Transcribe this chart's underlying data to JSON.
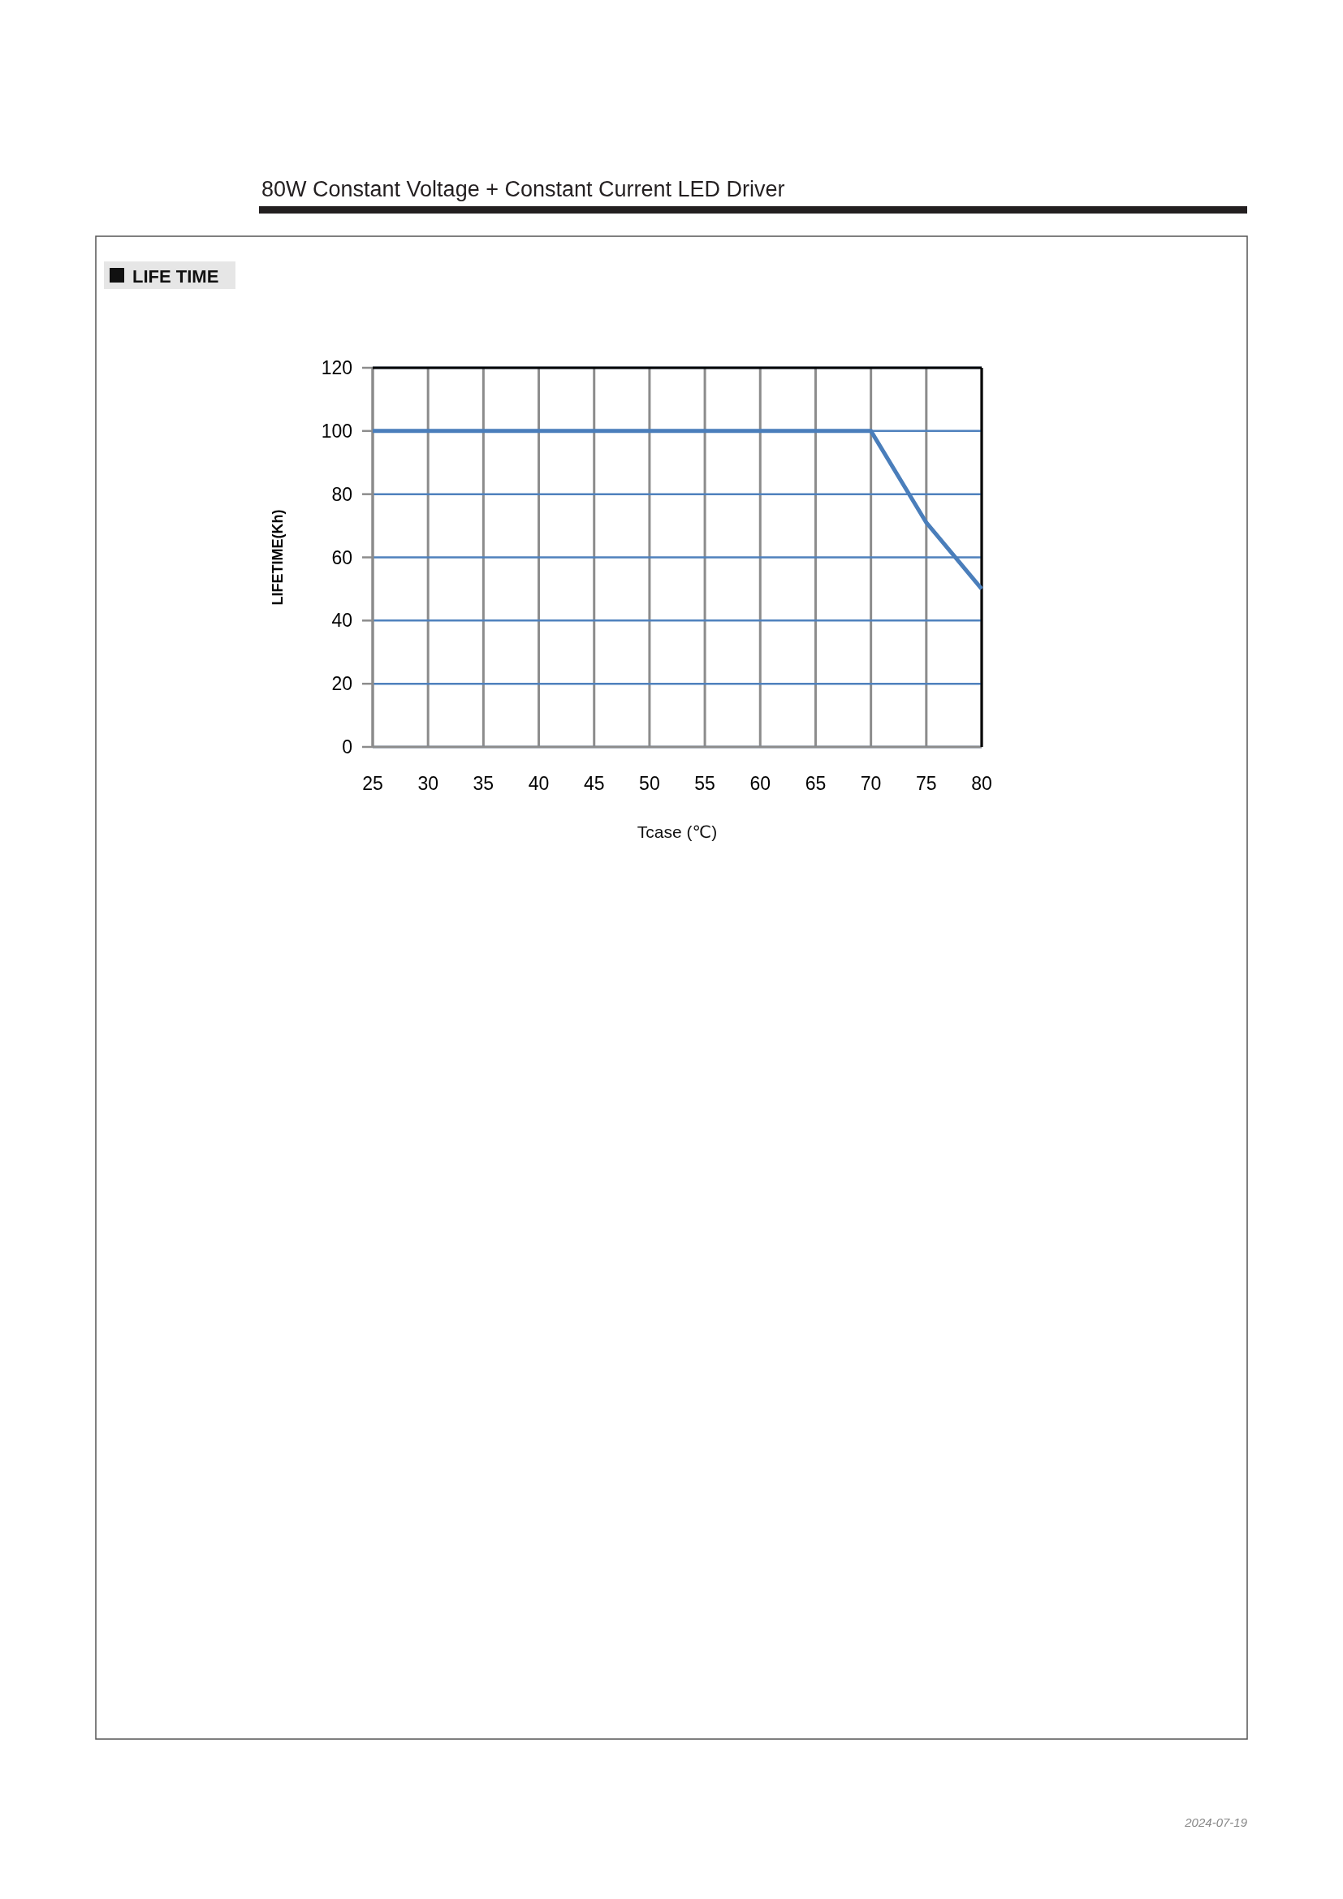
{
  "chart_data": {
    "type": "line",
    "title": "LIFE TIME",
    "xlabel": "Tcase (℃)",
    "ylabel": "LIFETIME(Kh)",
    "x": [
      25,
      70,
      75,
      80
    ],
    "series": [
      {
        "color": "#4a7ebb",
        "values": [
          100,
          100,
          71,
          50
        ]
      }
    ],
    "xlim": [
      25,
      80
    ],
    "ylim": [
      0,
      120
    ],
    "xticks": [
      25,
      30,
      35,
      40,
      45,
      50,
      55,
      60,
      65,
      70,
      75,
      80
    ],
    "yticks": [
      0,
      20,
      40,
      60,
      80,
      100,
      120
    ],
    "grid": true,
    "line_style": "solid",
    "annotations": [
      "80W Constant Voltage + Constant Current LED Driver",
      "2024-07-19"
    ]
  }
}
